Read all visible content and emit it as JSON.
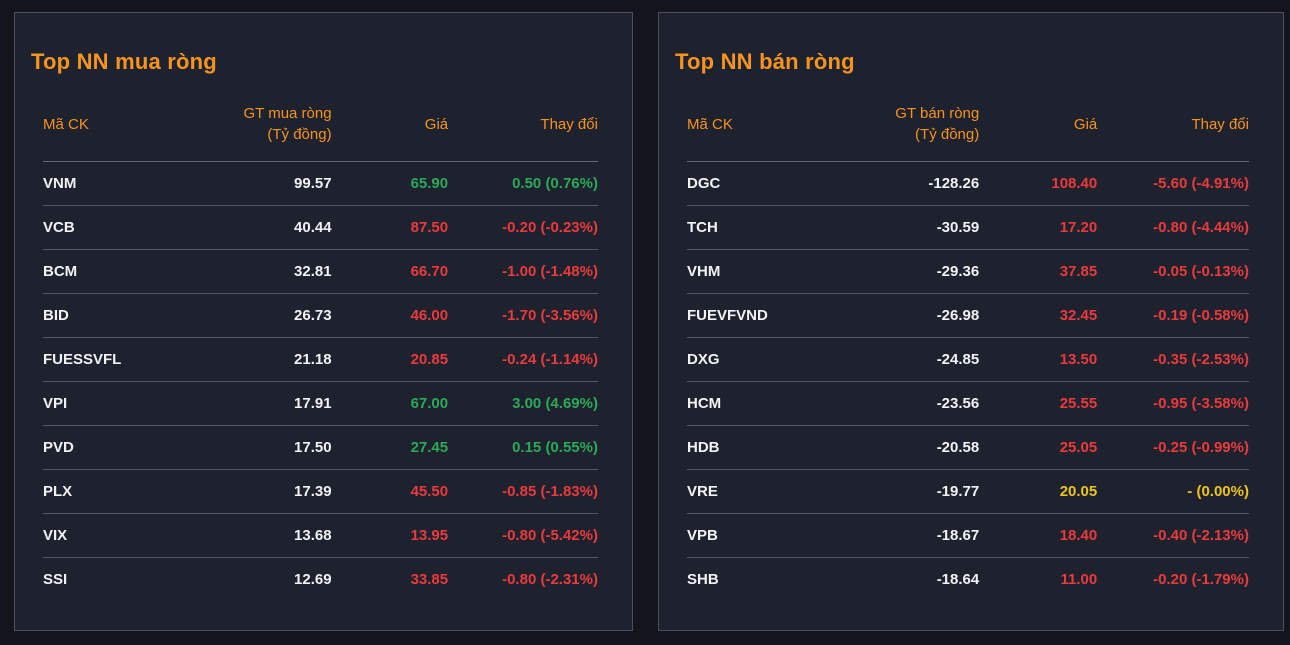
{
  "theme": {
    "page_bg": "#14151c",
    "panel_bg": "#1e212e",
    "panel_border": "#4b5063",
    "accent_orange": "#f7941e",
    "text_white": "#f1f2f4",
    "up_green": "#2baa58",
    "down_red": "#ea3b3c",
    "reference_yellow": "#eec41a"
  },
  "panels": [
    {
      "title": "Top NN mua ròng",
      "columns": {
        "symbol": "Mã CK",
        "value_line1": "GT mua ròng",
        "value_line2": "(Tỷ đồng)",
        "price": "Giá",
        "change": "Thay đổi"
      },
      "rows": [
        {
          "symbol": "VNM",
          "value": "99.57",
          "price": "65.90",
          "change": "0.50 (0.76%)",
          "trend": "up"
        },
        {
          "symbol": "VCB",
          "value": "40.44",
          "price": "87.50",
          "change": "-0.20 (-0.23%)",
          "trend": "down"
        },
        {
          "symbol": "BCM",
          "value": "32.81",
          "price": "66.70",
          "change": "-1.00 (-1.48%)",
          "trend": "down"
        },
        {
          "symbol": "BID",
          "value": "26.73",
          "price": "46.00",
          "change": "-1.70 (-3.56%)",
          "trend": "down"
        },
        {
          "symbol": "FUESSVFL",
          "value": "21.18",
          "price": "20.85",
          "change": "-0.24 (-1.14%)",
          "trend": "down"
        },
        {
          "symbol": "VPI",
          "value": "17.91",
          "price": "67.00",
          "change": "3.00 (4.69%)",
          "trend": "up"
        },
        {
          "symbol": "PVD",
          "value": "17.50",
          "price": "27.45",
          "change": "0.15 (0.55%)",
          "trend": "up"
        },
        {
          "symbol": "PLX",
          "value": "17.39",
          "price": "45.50",
          "change": "-0.85 (-1.83%)",
          "trend": "down"
        },
        {
          "symbol": "VIX",
          "value": "13.68",
          "price": "13.95",
          "change": "-0.80 (-5.42%)",
          "trend": "down"
        },
        {
          "symbol": "SSI",
          "value": "12.69",
          "price": "33.85",
          "change": "-0.80 (-2.31%)",
          "trend": "down"
        }
      ]
    },
    {
      "title": "Top NN bán ròng",
      "columns": {
        "symbol": "Mã CK",
        "value_line1": "GT bán ròng",
        "value_line2": "(Tỷ đồng)",
        "price": "Giá",
        "change": "Thay đổi"
      },
      "rows": [
        {
          "symbol": "DGC",
          "value": "-128.26",
          "price": "108.40",
          "change": "-5.60 (-4.91%)",
          "trend": "down"
        },
        {
          "symbol": "TCH",
          "value": "-30.59",
          "price": "17.20",
          "change": "-0.80 (-4.44%)",
          "trend": "down"
        },
        {
          "symbol": "VHM",
          "value": "-29.36",
          "price": "37.85",
          "change": "-0.05 (-0.13%)",
          "trend": "down"
        },
        {
          "symbol": "FUEVFVND",
          "value": "-26.98",
          "price": "32.45",
          "change": "-0.19 (-0.58%)",
          "trend": "down"
        },
        {
          "symbol": "DXG",
          "value": "-24.85",
          "price": "13.50",
          "change": "-0.35 (-2.53%)",
          "trend": "down"
        },
        {
          "symbol": "HCM",
          "value": "-23.56",
          "price": "25.55",
          "change": "-0.95 (-3.58%)",
          "trend": "down"
        },
        {
          "symbol": "HDB",
          "value": "-20.58",
          "price": "25.05",
          "change": "-0.25 (-0.99%)",
          "trend": "down"
        },
        {
          "symbol": "VRE",
          "value": "-19.77",
          "price": "20.05",
          "change": "- (0.00%)",
          "trend": "ref"
        },
        {
          "symbol": "VPB",
          "value": "-18.67",
          "price": "18.40",
          "change": "-0.40 (-2.13%)",
          "trend": "down"
        },
        {
          "symbol": "SHB",
          "value": "-18.64",
          "price": "11.00",
          "change": "-0.20 (-1.79%)",
          "trend": "down"
        }
      ]
    }
  ]
}
